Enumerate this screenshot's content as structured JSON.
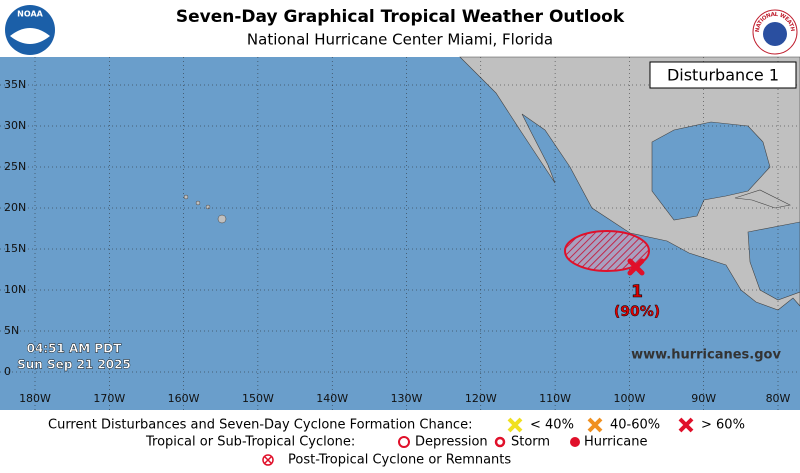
{
  "header": {
    "title": "Seven-Day Graphical Tropical Weather Outlook",
    "subtitle": "National Hurricane Center  Miami, Florida",
    "left_logo": "NOAA",
    "right_logo": "NATIONAL WEATHER SERVICE"
  },
  "map": {
    "lat_labels": [
      "35N",
      "30N",
      "25N",
      "20N",
      "15N",
      "10N",
      "5N",
      "0"
    ],
    "lon_labels": [
      "180W",
      "170W",
      "160W",
      "150W",
      "140W",
      "130W",
      "120W",
      "110W",
      "100W",
      "90W",
      "80W"
    ],
    "panel": "Disturbance 1",
    "disturbance": {
      "number": "1",
      "chance": "(90%)"
    },
    "time": "04:51 AM PDT",
    "date": "Sun Sep 21 2025",
    "url": "www.hurricanes.gov"
  },
  "legend": {
    "row1_title": "Current Disturbances and Seven-Day Cyclone Formation Chance:",
    "low": "< 40%",
    "medium": "40-60%",
    "high": "> 60%",
    "row2_title": "Tropical or Sub-Tropical Cyclone:",
    "depression": "Depression",
    "storm": "Storm",
    "hurricane": "Hurricane",
    "row3": "Post-Tropical Cyclone or Remnants"
  }
}
